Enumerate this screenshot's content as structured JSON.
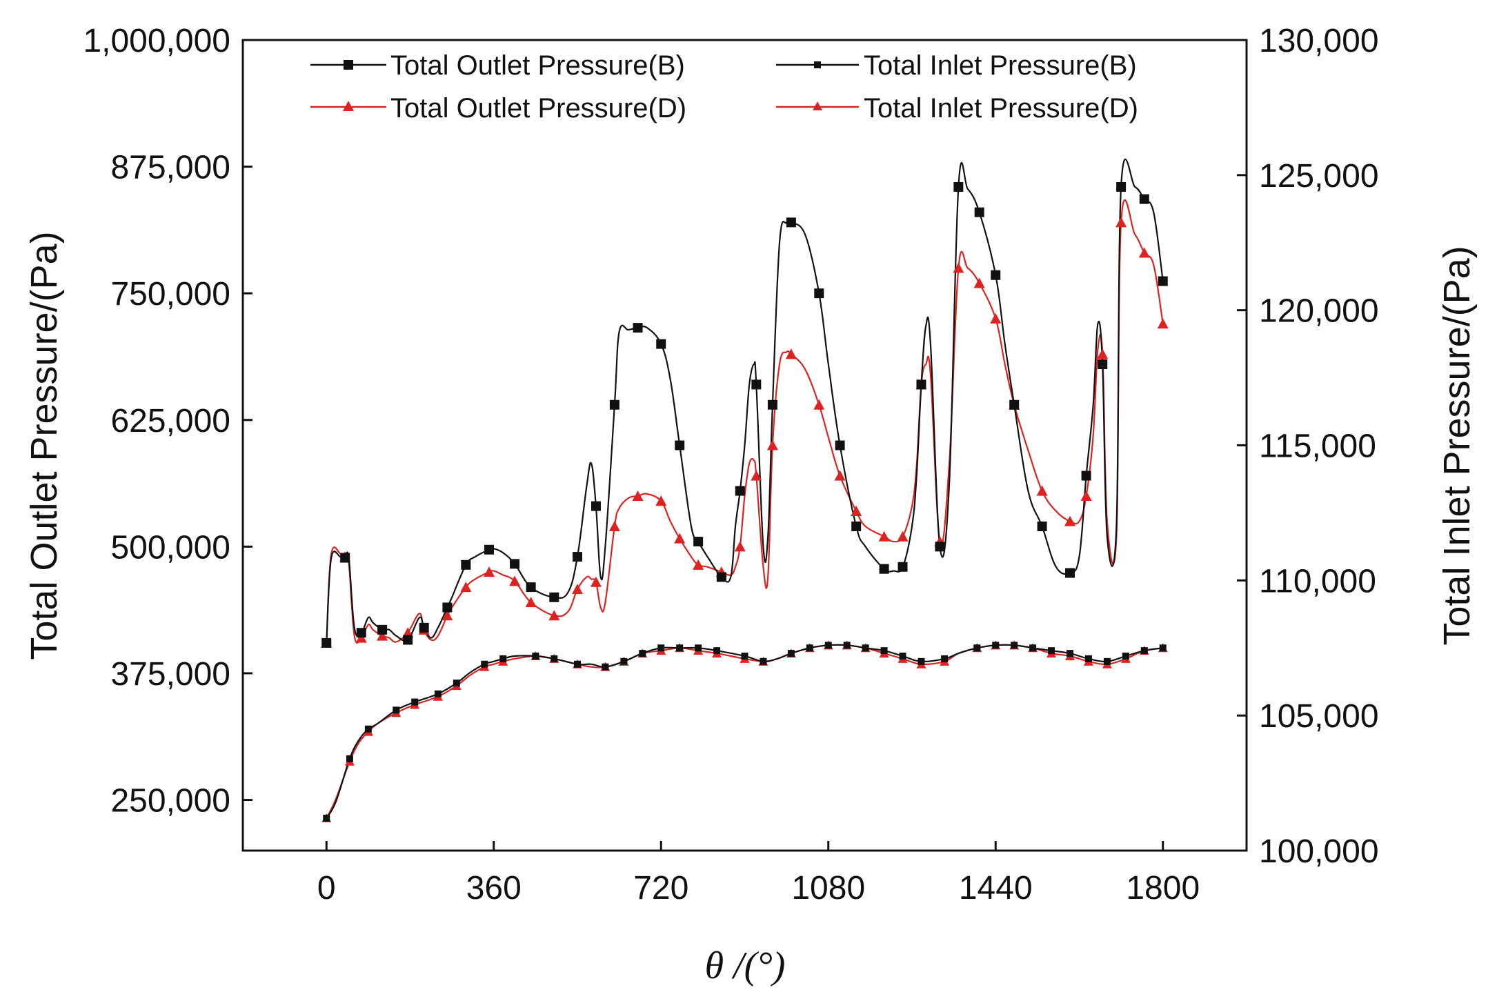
{
  "chart_data": {
    "type": "line",
    "title": "",
    "xlabel": "θ /(°)",
    "ylabel_left": "Total Outlet Pressure/(Pa)",
    "ylabel_right": "Total Inlet Pressure/(Pa)",
    "xlim": [
      -180,
      1980
    ],
    "ylim_left": [
      200000,
      1000000
    ],
    "ylim_right": [
      100000,
      130000
    ],
    "x_ticks": [
      0,
      360,
      720,
      1080,
      1440,
      1800
    ],
    "x_tick_labels": [
      "0",
      "360",
      "720",
      "1080",
      "1440",
      "1800"
    ],
    "y_left_ticks": [
      250000,
      375000,
      500000,
      625000,
      750000,
      875000,
      1000000
    ],
    "y_left_tick_labels": [
      "250,000",
      "375,000",
      "500,000",
      "625,000",
      "750,000",
      "875,000",
      "1,000,000"
    ],
    "y_right_ticks": [
      100000,
      105000,
      110000,
      115000,
      120000,
      125000,
      130000
    ],
    "y_right_tick_labels": [
      "100,000",
      "105,000",
      "110,000",
      "115,000",
      "120,000",
      "125,000",
      "130,000"
    ],
    "legend_position": "top",
    "colors": {
      "B": "#111111",
      "D": "#dd2222"
    },
    "series": [
      {
        "name": "Total Outlet Pressure(B)",
        "axis": "left",
        "marker": "square",
        "color": "#111111",
        "x": [
          0,
          10,
          30,
          40,
          48,
          60,
          75,
          90,
          100,
          120,
          135,
          150,
          175,
          200,
          210,
          225,
          240,
          260,
          270,
          300,
          320,
          350,
          360,
          380,
          405,
          440,
          490,
          520,
          540,
          560,
          570,
          580,
          590,
          600,
          620,
          630,
          650,
          670,
          690,
          720,
          740,
          760,
          785,
          800,
          820,
          850,
          870,
          880,
          890,
          900,
          910,
          920,
          925,
          940,
          950,
          960,
          975,
          990,
          1000,
          1030,
          1060,
          1080,
          1105,
          1140,
          1160,
          1200,
          1220,
          1240,
          1260,
          1270,
          1280,
          1290,
          1300,
          1320,
          1340,
          1360,
          1380,
          1405,
          1440,
          1460,
          1480,
          1510,
          1540,
          1570,
          1600,
          1620,
          1635,
          1650,
          1660,
          1670,
          1680,
          1700,
          1710,
          1740,
          1760,
          1780,
          1800
        ],
        "y": [
          405000,
          488000,
          490000,
          489000,
          489000,
          420000,
          415000,
          430000,
          425000,
          418000,
          418000,
          412000,
          408000,
          430000,
          420000,
          410000,
          420000,
          440000,
          450000,
          482000,
          490000,
          497000,
          498000,
          494000,
          483000,
          460000,
          450000,
          455000,
          490000,
          560000,
          582000,
          540000,
          470000,
          500000,
          640000,
          712000,
          714000,
          716000,
          716000,
          700000,
          665000,
          600000,
          520000,
          505000,
          490000,
          470000,
          470000,
          520000,
          555000,
          600000,
          660000,
          680000,
          660000,
          500000,
          510000,
          640000,
          800000,
          820000,
          820000,
          808000,
          750000,
          680000,
          600000,
          520000,
          500000,
          478000,
          476000,
          480000,
          520000,
          570000,
          660000,
          718000,
          700000,
          500000,
          560000,
          855000,
          853000,
          830000,
          768000,
          700000,
          640000,
          555000,
          520000,
          480000,
          474000,
          490000,
          570000,
          640000,
          720000,
          680000,
          510000,
          520000,
          855000,
          855000,
          843000,
          830000,
          762000
        ]
      },
      {
        "name": "Total Inlet Pressure(B)",
        "axis": "right",
        "marker": "small-square",
        "color": "#111111",
        "x": [
          0,
          20,
          50,
          70,
          90,
          110,
          150,
          190,
          240,
          280,
          310,
          340,
          360,
          380,
          405,
          450,
          490,
          540,
          570,
          600,
          640,
          680,
          720,
          760,
          800,
          840,
          900,
          940,
          970,
          1000,
          1040,
          1080,
          1120,
          1160,
          1200,
          1240,
          1280,
          1330,
          1360,
          1400,
          1440,
          1480,
          1520,
          1560,
          1600,
          1640,
          1680,
          1720,
          1760,
          1800
        ],
        "y": [
          101200,
          101800,
          103400,
          104100,
          104500,
          104700,
          105200,
          105500,
          105800,
          106200,
          106600,
          106900,
          107000,
          107100,
          107200,
          107200,
          107100,
          106900,
          106900,
          106800,
          107000,
          107300,
          107500,
          107500,
          107500,
          107400,
          107200,
          107000,
          107100,
          107300,
          107500,
          107600,
          107600,
          107500,
          107400,
          107200,
          107000,
          107100,
          107300,
          107500,
          107600,
          107600,
          107500,
          107400,
          107300,
          107100,
          107000,
          107200,
          107400,
          107500
        ]
      },
      {
        "name": "Total Outlet Pressure(D)",
        "axis": "left",
        "marker": "triangle",
        "color": "#dd2222",
        "x": [
          0,
          10,
          30,
          40,
          48,
          60,
          75,
          90,
          100,
          120,
          135,
          150,
          175,
          200,
          210,
          225,
          240,
          260,
          270,
          300,
          320,
          350,
          360,
          380,
          405,
          440,
          490,
          520,
          540,
          560,
          570,
          580,
          590,
          600,
          620,
          630,
          650,
          670,
          690,
          720,
          740,
          760,
          785,
          800,
          820,
          850,
          870,
          880,
          890,
          900,
          910,
          920,
          925,
          940,
          950,
          960,
          975,
          990,
          1000,
          1030,
          1060,
          1080,
          1105,
          1140,
          1160,
          1200,
          1220,
          1240,
          1260,
          1270,
          1280,
          1290,
          1300,
          1320,
          1340,
          1360,
          1380,
          1405,
          1440,
          1460,
          1480,
          1510,
          1540,
          1570,
          1600,
          1620,
          1635,
          1650,
          1660,
          1670,
          1680,
          1700,
          1710,
          1740,
          1760,
          1780,
          1800
        ],
        "y": [
          405000,
          492000,
          493000,
          490000,
          484000,
          412000,
          410000,
          423000,
          418000,
          412000,
          410000,
          406000,
          415000,
          434000,
          418000,
          408000,
          412000,
          432000,
          440000,
          460000,
          468000,
          475000,
          476000,
          472000,
          466000,
          445000,
          432000,
          436000,
          458000,
          470000,
          468000,
          465000,
          440000,
          445000,
          520000,
          538000,
          548000,
          550000,
          552000,
          545000,
          525000,
          508000,
          490000,
          482000,
          480000,
          475000,
          472000,
          480000,
          500000,
          550000,
          582000,
          585000,
          570000,
          480000,
          470000,
          600000,
          680000,
          692000,
          690000,
          675000,
          640000,
          608000,
          570000,
          535000,
          520000,
          510000,
          505000,
          510000,
          540000,
          580000,
          660000,
          680000,
          670000,
          505000,
          580000,
          775000,
          775000,
          760000,
          725000,
          680000,
          640000,
          595000,
          555000,
          535000,
          525000,
          525000,
          550000,
          610000,
          695000,
          690000,
          525000,
          510000,
          820000,
          808000,
          790000,
          778000,
          720000
        ]
      },
      {
        "name": "Total Inlet Pressure(D)",
        "axis": "right",
        "marker": "small-triangle",
        "color": "#dd2222",
        "x": [
          0,
          20,
          50,
          70,
          90,
          110,
          150,
          190,
          240,
          280,
          310,
          340,
          360,
          380,
          405,
          450,
          490,
          540,
          570,
          600,
          640,
          680,
          720,
          760,
          800,
          840,
          900,
          940,
          970,
          1000,
          1040,
          1080,
          1120,
          1160,
          1200,
          1240,
          1280,
          1330,
          1360,
          1400,
          1440,
          1480,
          1520,
          1560,
          1600,
          1640,
          1680,
          1720,
          1760,
          1800
        ],
        "y": [
          101200,
          101900,
          103300,
          104000,
          104400,
          104700,
          105100,
          105400,
          105700,
          106100,
          106500,
          106800,
          106900,
          107000,
          107100,
          107200,
          107100,
          106900,
          106800,
          106800,
          107000,
          107300,
          107400,
          107500,
          107400,
          107300,
          107100,
          107000,
          107100,
          107300,
          107500,
          107600,
          107600,
          107500,
          107300,
          107100,
          106900,
          107000,
          107300,
          107500,
          107600,
          107600,
          107500,
          107300,
          107200,
          107000,
          106900,
          107100,
          107400,
          107500
        ]
      }
    ]
  }
}
